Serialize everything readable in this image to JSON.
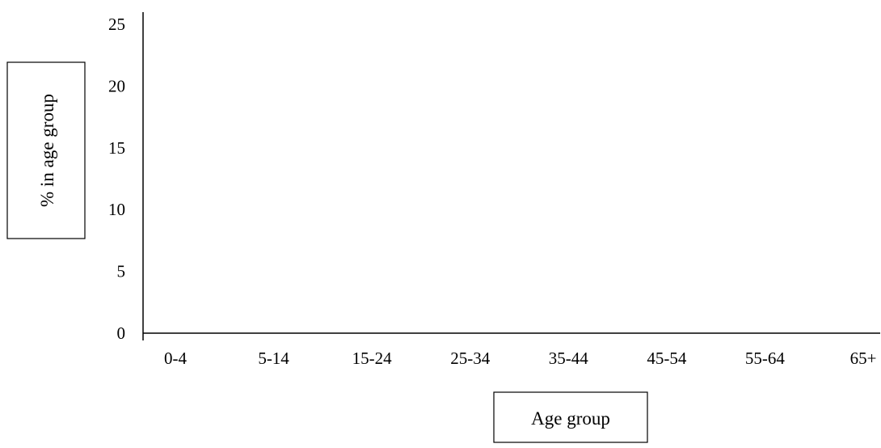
{
  "chart_data": {
    "type": "bar",
    "title": "",
    "xlabel": "Age group",
    "ylabel": "% in age group",
    "categories": [
      "0-4",
      "5-14",
      "15-24",
      "25-34",
      "35-44",
      "45-54",
      "55-64",
      "65+"
    ],
    "yticks": [
      0,
      5,
      10,
      15,
      20,
      25
    ],
    "ylim": [
      0,
      25
    ],
    "series": [],
    "grid": false,
    "legend": "none"
  }
}
